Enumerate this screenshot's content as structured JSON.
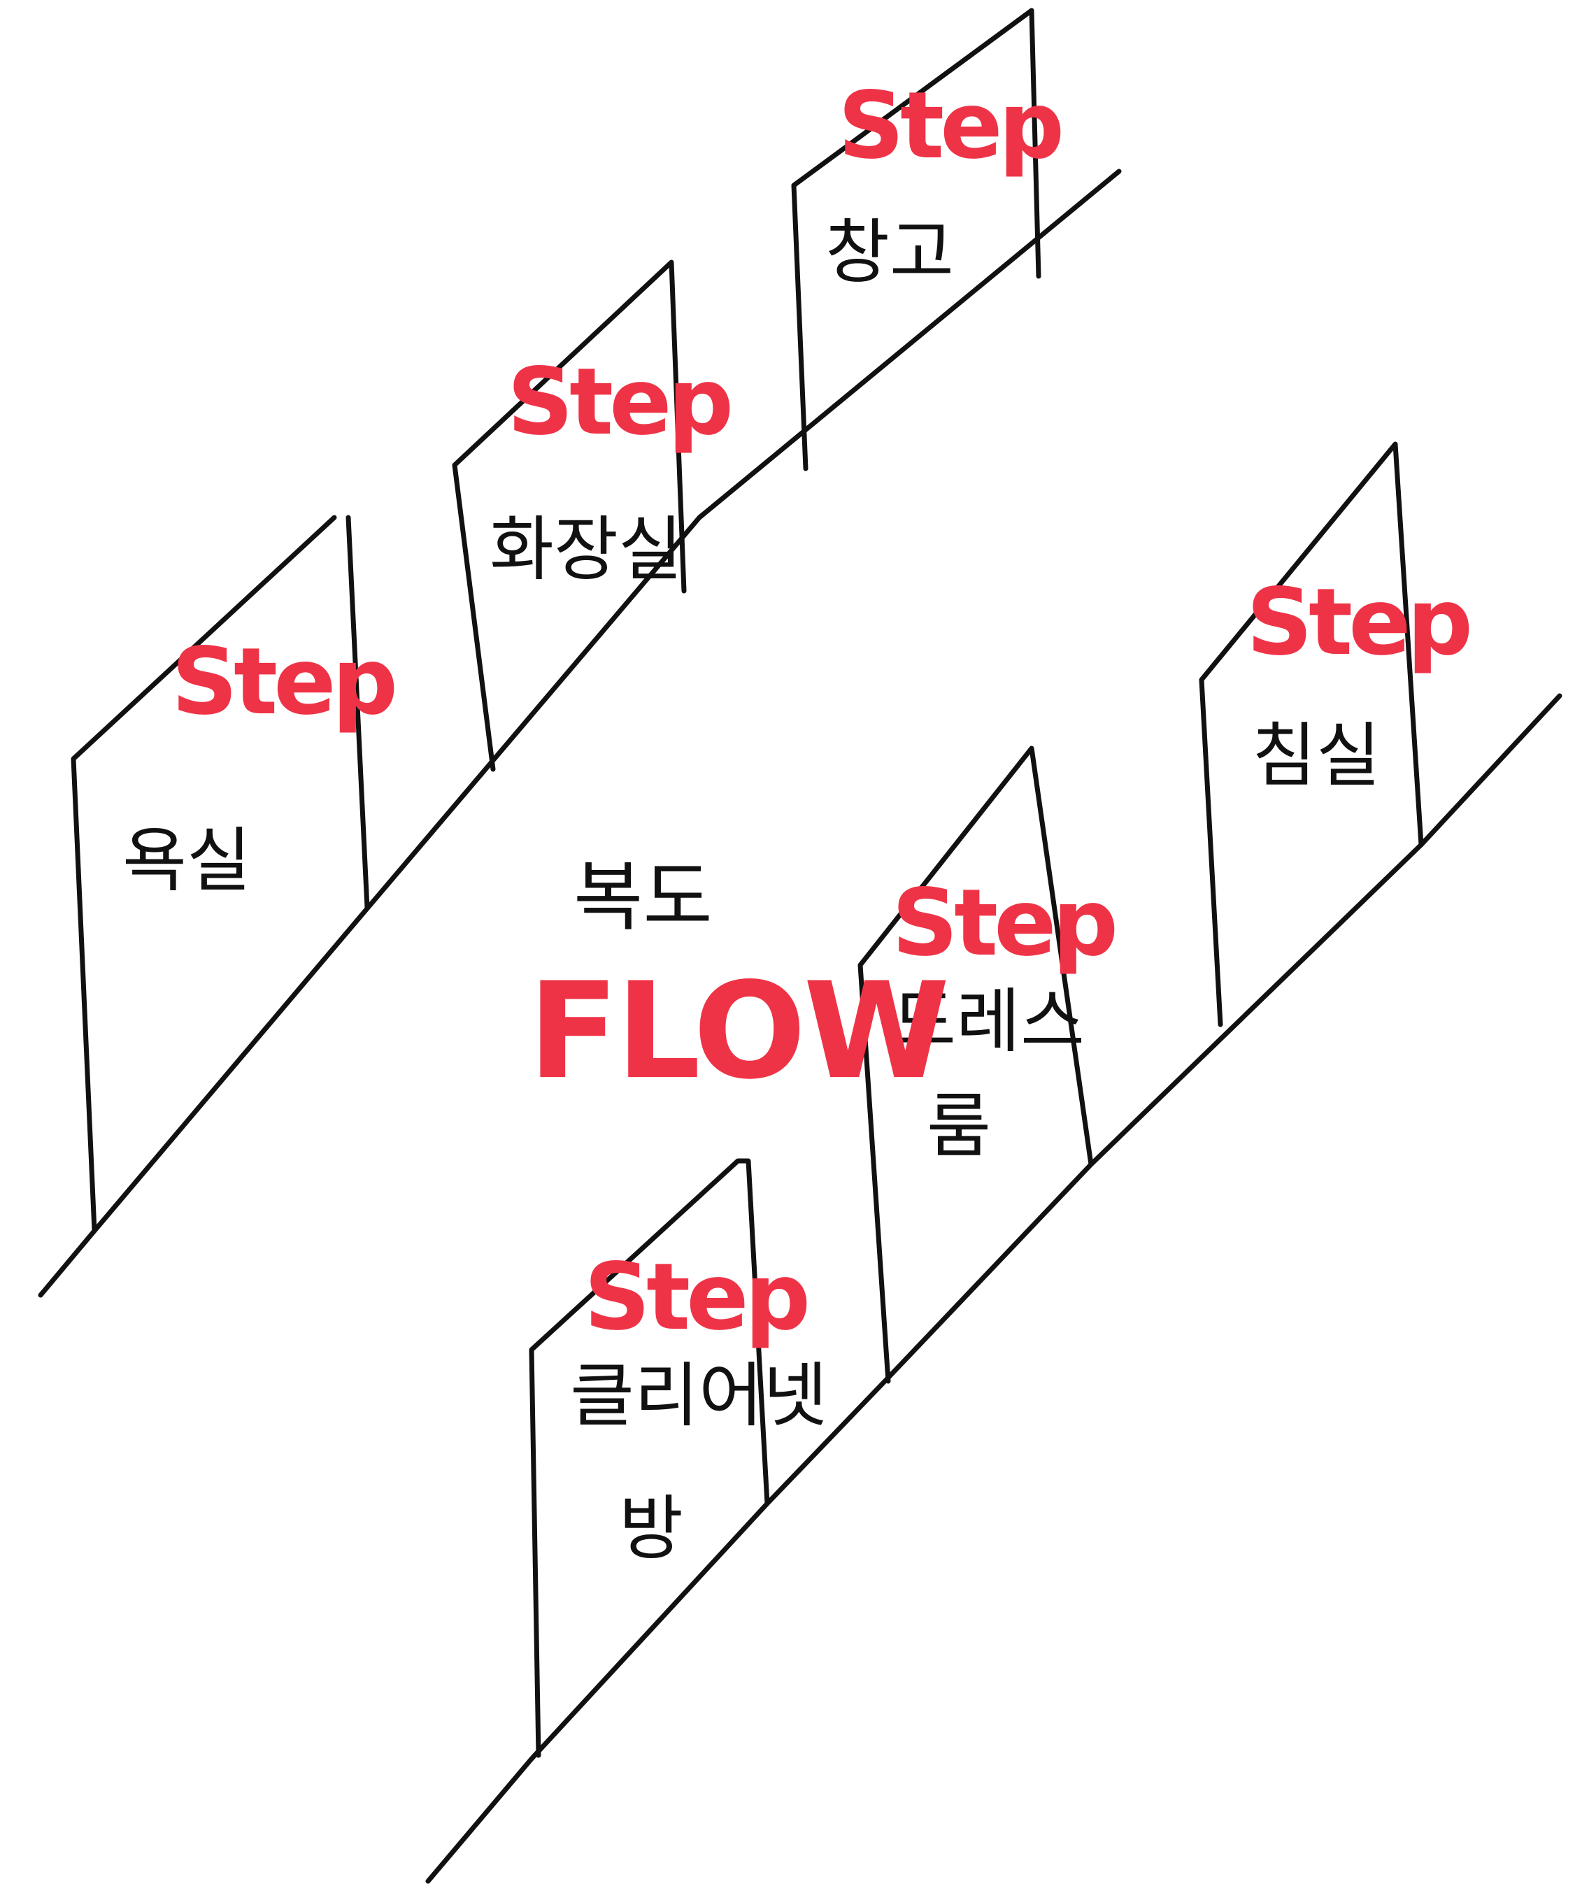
{
  "colors": {
    "ink": "#111111",
    "accent": "#ef3347",
    "background": "#ffffff"
  },
  "corridor": {
    "label": "복도",
    "flow": "FLOW"
  },
  "rooms": [
    {
      "id": "storage",
      "label": "창고",
      "step": "Step"
    },
    {
      "id": "restroom",
      "label": "화장실",
      "step": "Step"
    },
    {
      "id": "bath",
      "label": "욕실",
      "step": "Step"
    },
    {
      "id": "bedroom",
      "label": "침실",
      "step": "Step"
    },
    {
      "id": "dressroom",
      "label_line1": "드레스",
      "label_line2": "룸",
      "step": "Step"
    },
    {
      "id": "cleaning",
      "label_line1": "클리어넷",
      "label_line2": "방",
      "step": "Step"
    }
  ]
}
